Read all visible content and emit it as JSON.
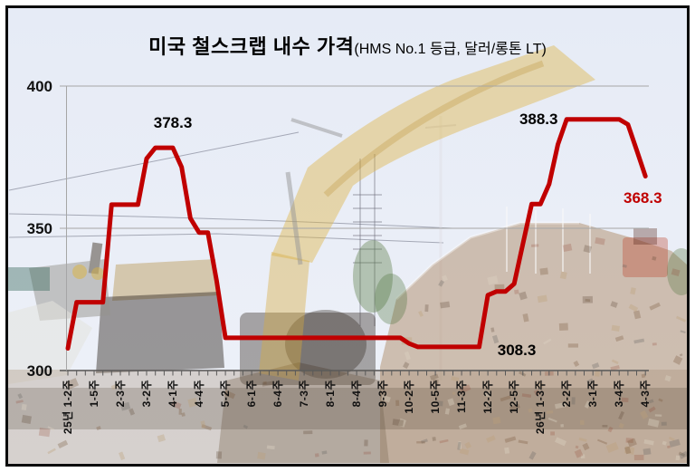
{
  "title": {
    "main": "미국 철스크랩 내수 가격",
    "sub": "(HMS No.1 등급, 달러/롱톤 LT)"
  },
  "chart_data": {
    "type": "line",
    "title": "미국 철스크랩 내수 가격 (HMS No.1 등급, 달러/롱톤 LT)",
    "unit": "달러/롱톤 LT",
    "grade": "HMS No.1 등급",
    "line_color": "#C00000",
    "grid": "horizontal",
    "ylim": [
      300,
      400
    ],
    "yticks": [
      300,
      350,
      400
    ],
    "x_tick_unit": "week",
    "label_interval_weeks": 3,
    "x_labels": [
      "25년 1-2주",
      "1-5주",
      "2-3주",
      "3-2주",
      "4-1주",
      "4-4주",
      "5-2주",
      "6-1주",
      "6-4주",
      "7-3주",
      "8-1주",
      "8-4주",
      "9-3주",
      "10-2주",
      "10-5주",
      "11-3주",
      "12-2주",
      "12-5주",
      "26년 1-3주",
      "2-2주",
      "3-1주",
      "3-4주",
      "4-3주"
    ],
    "weekly_values": [
      307.8,
      324.0,
      324.0,
      324.0,
      324.0,
      358.3,
      358.3,
      358.3,
      358.3,
      374.5,
      378.3,
      378.3,
      378.3,
      371.5,
      353.5,
      348.5,
      348.5,
      331.5,
      311.5,
      311.5,
      311.5,
      311.5,
      311.5,
      311.5,
      311.5,
      311.5,
      311.5,
      311.5,
      311.5,
      311.5,
      311.5,
      311.5,
      311.5,
      311.5,
      311.5,
      311.5,
      311.5,
      311.5,
      311.5,
      309.5,
      308.3,
      308.3,
      308.3,
      308.3,
      308.3,
      308.3,
      308.3,
      308.3,
      326.5,
      327.8,
      327.8,
      330.5,
      344.5,
      358.5,
      358.5,
      365.5,
      379.5,
      388.3,
      388.3,
      388.3,
      388.3,
      388.3,
      388.3,
      388.3,
      386.5,
      377.5,
      368.3
    ],
    "annotations": [
      {
        "text": "378.3",
        "week": 12.0,
        "value": 378.3,
        "placement": "above",
        "color": "#000000"
      },
      {
        "text": "388.3",
        "week": 53.8,
        "value": 388.3,
        "placement": "at",
        "color": "#000000"
      },
      {
        "text": "308.3",
        "week": 51.3,
        "value": 308.3,
        "placement": "inline",
        "color": "#000000"
      },
      {
        "text": "368.3",
        "week": 65.7,
        "value": 368.3,
        "placement": "below",
        "color": "#C00000"
      }
    ]
  }
}
